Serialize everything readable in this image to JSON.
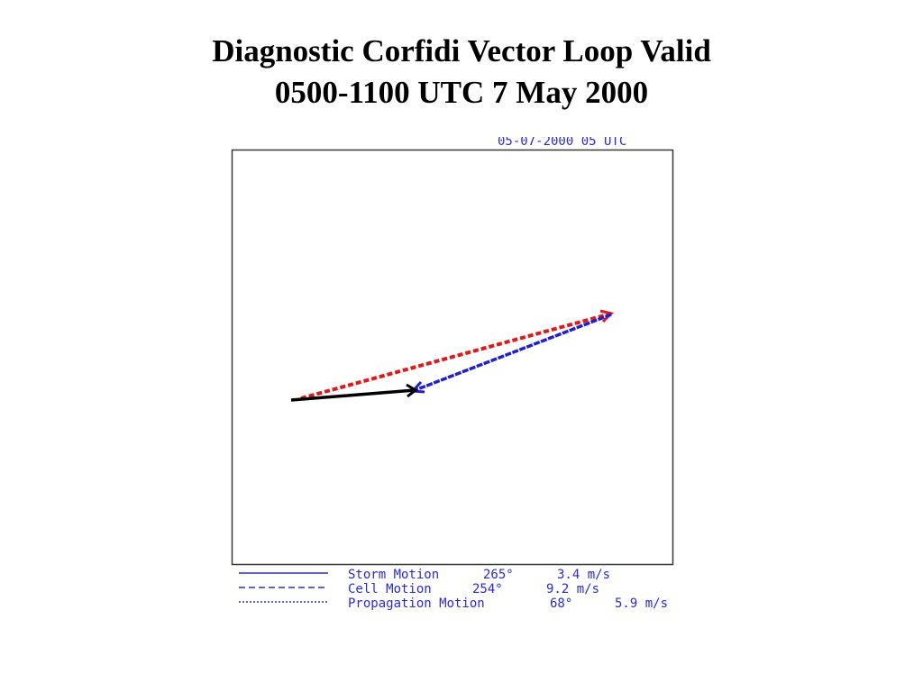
{
  "slide": {
    "title_line1": "Diagnostic Corfidi Vector Loop Valid",
    "title_line2": "0500-1100 UTC 7 May 2000"
  },
  "plot": {
    "timestamp": "05-07-2000  05 UTC",
    "vectors": [
      {
        "id": "storm",
        "color": "#000000"
      },
      {
        "id": "cell",
        "color": "#2020d0"
      },
      {
        "id": "propagation",
        "color": "#e01818"
      }
    ]
  },
  "legend": {
    "rows": [
      {
        "line_style": "solid",
        "name": "Storm Motion",
        "direction": "265°",
        "speed": "3.4 m/s"
      },
      {
        "line_style": "dashed",
        "name": "Cell Motion",
        "direction": "254°",
        "speed": "9.2 m/s"
      },
      {
        "line_style": "dotted",
        "name": "Propagation Motion",
        "direction": "68°",
        "speed": "5.9 m/s"
      }
    ],
    "text_color": "#2a2ad8"
  }
}
